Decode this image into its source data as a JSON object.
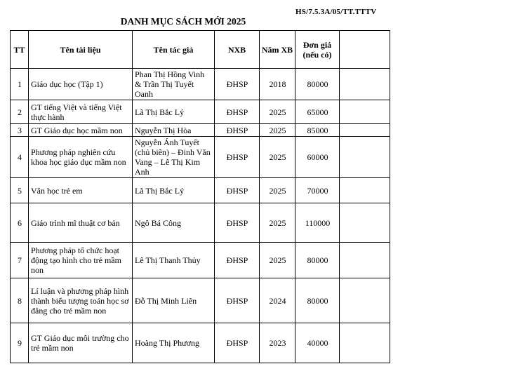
{
  "doc_code": "HS/7.5.3A/05/TT.TTTV",
  "title": "DANH MỤC SÁCH MỚI 2025",
  "table": {
    "headers": [
      "TT",
      "Tên tài liệu",
      "Tên tác giả",
      "NXB",
      "Năm XB",
      "Đơn giá (nếu có)",
      ""
    ],
    "rows": [
      {
        "tt": "1",
        "title": "Giáo dục học (Tập 1)",
        "author": "Phan Thị Hồng Vinh & Trần Thị Tuyết Oanh",
        "nxb": "ĐHSP",
        "year": "2018",
        "price": "80000",
        "note": ""
      },
      {
        "tt": "2",
        "title": "GT tiếng Việt và tiếng Việt thực hành",
        "author": "Lã Thị Bắc Lý",
        "nxb": "ĐHSP",
        "year": "2025",
        "price": "65000",
        "note": ""
      },
      {
        "tt": "3",
        "title": "GT Giáo dục học mầm non",
        "author": "Nguyễn Thị Hòa",
        "nxb": "ĐHSP",
        "year": "2025",
        "price": "85000",
        "note": ""
      },
      {
        "tt": "4",
        "title": "Phương pháp nghiên cứu khoa học giáo dục mầm non",
        "author": "Nguyễn Ánh Tuyết (chủ biên) – Đinh Văn Vang – Lê Thị Kim Anh",
        "nxb": "ĐHSP",
        "year": "2025",
        "price": "60000",
        "note": ""
      },
      {
        "tt": "5",
        "title": "Văn học trẻ em",
        "author": "Lã Thị Bắc Lý",
        "nxb": "ĐHSP",
        "year": "2025",
        "price": "70000",
        "note": ""
      },
      {
        "tt": "6",
        "title": "Giáo trình mĩ thuật cơ bản",
        "author": "Ngô Bá Công",
        "nxb": "ĐHSP",
        "year": "2025",
        "price": "110000",
        "note": ""
      },
      {
        "tt": "7",
        "title": "Phương pháp tổ chức hoạt động tạo hình cho trẻ mầm non",
        "author": "Lê Thị Thanh Thủy",
        "nxb": "ĐHSP",
        "year": "2025",
        "price": "80000",
        "note": ""
      },
      {
        "tt": "8",
        "title": "Lí luận và phương pháp hình thành biểu tượng toán học sơ đẳng cho trẻ mầm non",
        "author": "Đỗ Thị Minh Liên",
        "nxb": "ĐHSP",
        "year": "2024",
        "price": "80000",
        "note": ""
      },
      {
        "tt": "9",
        "title": "GT Giáo dục môi trường cho trẻ mầm non",
        "author": "Hoàng Thị Phương",
        "nxb": "ĐHSP",
        "year": "2023",
        "price": "40000",
        "note": ""
      }
    ]
  }
}
